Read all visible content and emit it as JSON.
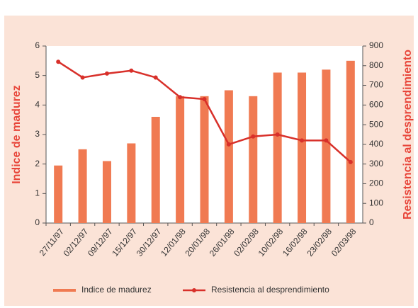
{
  "chart_data": {
    "type": "bar",
    "categories": [
      "27/11/97",
      "02/12/97",
      "09/12/97",
      "15/12/97",
      "30/12/97",
      "12/01/98",
      "20/01/98",
      "26/01/98",
      "02/02/98",
      "10/02/98",
      "16/02/98",
      "23/02/98",
      "02/03/98"
    ],
    "series": [
      {
        "name": "Indice de madurez",
        "type": "bar",
        "color": "#f07a52",
        "values": [
          1.95,
          2.5,
          2.1,
          2.7,
          3.6,
          4.3,
          4.3,
          4.5,
          4.3,
          5.1,
          5.1,
          5.2,
          5.5
        ]
      },
      {
        "name": "Resistencia al desprendimiento",
        "type": "line",
        "axis": "y2",
        "color": "#d8302a",
        "values": [
          820,
          740,
          760,
          775,
          740,
          640,
          630,
          400,
          440,
          450,
          420,
          420,
          310
        ]
      }
    ],
    "y_label": "Indice de madurez",
    "y2_label": "Resistencia al desprendimiento",
    "ylim": [
      0,
      6
    ],
    "yticks": [
      0,
      1,
      2,
      3,
      4,
      5,
      6
    ],
    "y2lim": [
      0,
      900
    ],
    "y2ticks": [
      0,
      100,
      200,
      300,
      400,
      500,
      600,
      700,
      800,
      900
    ],
    "legend": "bottom"
  }
}
